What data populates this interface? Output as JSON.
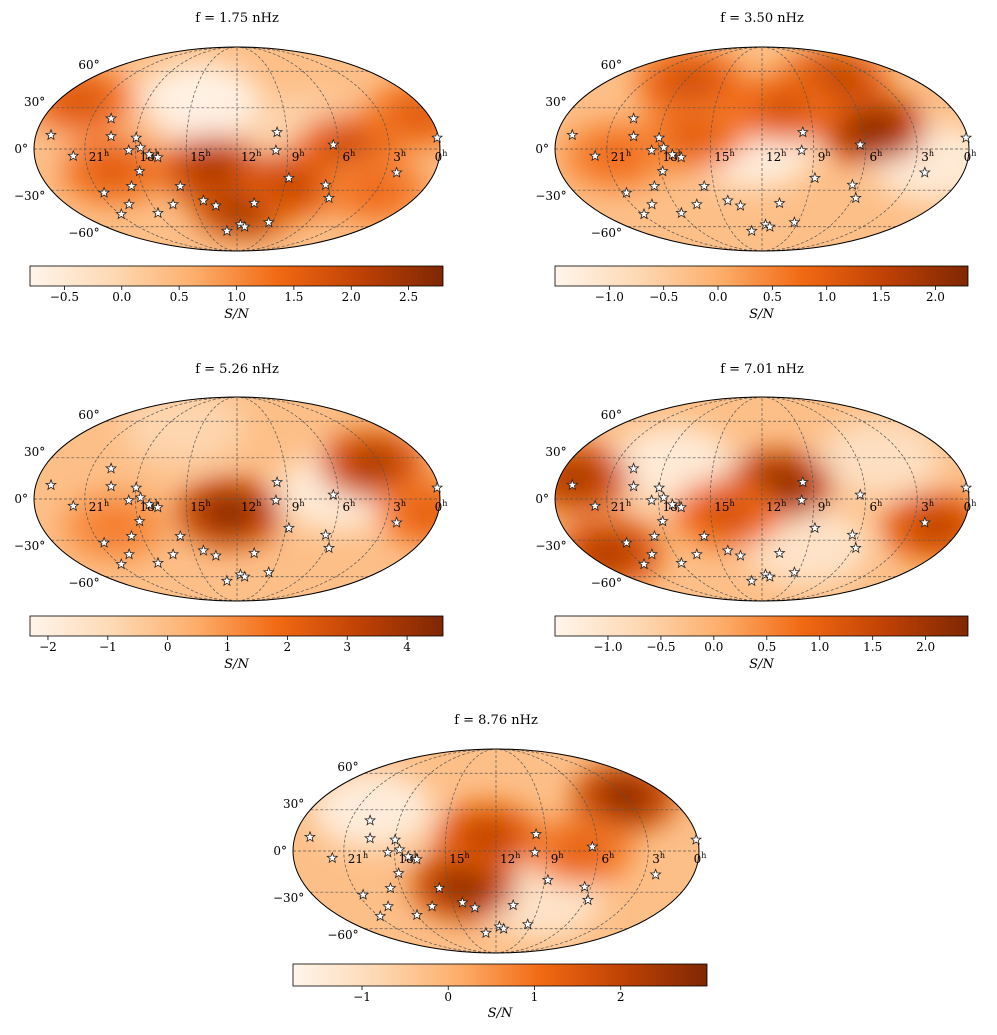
{
  "figure": {
    "colorbar_label": "S/N",
    "ra_labels": [
      "21h",
      "18h",
      "15h",
      "12h",
      "9h",
      "6h",
      "3h",
      "0h"
    ],
    "dec_labels": [
      "60°",
      "30°",
      "0°",
      "−30°",
      "−60°"
    ]
  },
  "chart_data": [
    {
      "type": "heatmap",
      "projection": "mollweide",
      "title": "f = 1.75 nHz",
      "colorbar_ticks": [
        "−0.5",
        "0.0",
        "0.5",
        "1.0",
        "1.5",
        "2.0",
        "2.5"
      ],
      "colorbar_range": [
        -0.8,
        2.8
      ],
      "hotspots": [
        {
          "ra": 11.5,
          "dec": -40,
          "value": 2.7
        },
        {
          "ra": 8.5,
          "dec": -25,
          "value": 2.0
        },
        {
          "ra": 13.5,
          "dec": -15,
          "value": 2.3
        },
        {
          "ra": 19.5,
          "dec": -15,
          "value": 1.6
        },
        {
          "ra": 22.5,
          "dec": 35,
          "value": 1.7
        },
        {
          "ra": 5.5,
          "dec": 0,
          "value": 1.9
        },
        {
          "ra": 0.5,
          "dec": 25,
          "value": 1.6
        },
        {
          "ra": 3.0,
          "dec": -30,
          "value": 1.4
        }
      ],
      "coldspots": [
        {
          "ra": 14.5,
          "dec": 35,
          "value": -0.7
        },
        {
          "ra": 8.0,
          "dec": 10,
          "value": 0.0
        },
        {
          "ra": 20.0,
          "dec": 10,
          "value": 0.3
        }
      ]
    },
    {
      "type": "heatmap",
      "projection": "mollweide",
      "title": "f = 3.50 nHz",
      "colorbar_ticks": [
        "−1.0",
        "−0.5",
        "0.0",
        "0.5",
        "1.0",
        "1.5",
        "2.0"
      ],
      "colorbar_range": [
        -1.5,
        2.3
      ],
      "hotspots": [
        {
          "ra": 5.5,
          "dec": 15,
          "value": 2.2
        },
        {
          "ra": 6.5,
          "dec": 50,
          "value": 1.6
        },
        {
          "ra": 17.5,
          "dec": 50,
          "value": 1.3
        },
        {
          "ra": 16.0,
          "dec": 10,
          "value": 1.0
        },
        {
          "ra": 20.5,
          "dec": -5,
          "value": 0.8
        },
        {
          "ra": 10.5,
          "dec": 30,
          "value": 1.2
        }
      ],
      "coldspots": [
        {
          "ra": 12.5,
          "dec": 0,
          "value": -1.3
        },
        {
          "ra": 2.0,
          "dec": -10,
          "value": -1.2
        }
      ]
    },
    {
      "type": "heatmap",
      "projection": "mollweide",
      "title": "f = 5.26 nHz",
      "colorbar_ticks": [
        "−2",
        "−1",
        "0",
        "1",
        "2",
        "3",
        "4"
      ],
      "colorbar_range": [
        -2.3,
        4.6
      ],
      "hotspots": [
        {
          "ra": 12.5,
          "dec": -10,
          "value": 4.4
        },
        {
          "ra": 3.5,
          "dec": 25,
          "value": 3.6
        },
        {
          "ra": 0.5,
          "dec": -10,
          "value": 2.2
        },
        {
          "ra": 19.5,
          "dec": -20,
          "value": 1.5
        }
      ],
      "coldspots": [
        {
          "ra": 6.0,
          "dec": 5,
          "value": -1.8
        },
        {
          "ra": 16.5,
          "dec": 55,
          "value": -0.8
        }
      ]
    },
    {
      "type": "heatmap",
      "projection": "mollweide",
      "title": "f = 7.01 nHz",
      "colorbar_ticks": [
        "−1.0",
        "−0.5",
        "0.0",
        "0.5",
        "1.0",
        "1.5",
        "2.0"
      ],
      "colorbar_range": [
        -1.5,
        2.4
      ],
      "hotspots": [
        {
          "ra": 11.0,
          "dec": 10,
          "value": 2.3
        },
        {
          "ra": 23.0,
          "dec": 15,
          "value": 1.9
        },
        {
          "ra": 22.5,
          "dec": -40,
          "value": 1.8
        },
        {
          "ra": 1.5,
          "dec": -20,
          "value": 1.6
        },
        {
          "ra": 14.0,
          "dec": -10,
          "value": 1.3
        }
      ],
      "coldspots": [
        {
          "ra": 17.5,
          "dec": 25,
          "value": -1.2
        },
        {
          "ra": 9.0,
          "dec": -35,
          "value": -1.0
        },
        {
          "ra": 4.5,
          "dec": 30,
          "value": -0.9
        }
      ]
    },
    {
      "type": "heatmap",
      "projection": "mollweide",
      "title": "f = 8.76 nHz",
      "colorbar_ticks": [
        "−1",
        "0",
        "1",
        "2"
      ],
      "colorbar_range": [
        -1.8,
        3.0
      ],
      "hotspots": [
        {
          "ra": 14.0,
          "dec": -25,
          "value": 2.8
        },
        {
          "ra": 3.0,
          "dec": 40,
          "value": 2.8
        },
        {
          "ra": 12.5,
          "dec": 10,
          "value": 2.0
        },
        {
          "ra": 7.0,
          "dec": 0,
          "value": 1.3
        }
      ],
      "coldspots": [
        {
          "ra": 20.0,
          "dec": 30,
          "value": -1.5
        },
        {
          "ra": 9.0,
          "dec": -35,
          "value": -1.2
        }
      ]
    }
  ],
  "pulsars": [
    {
      "ra": 23.1,
      "dec": 10
    },
    {
      "ra": 21.7,
      "dec": -5
    },
    {
      "ra": 19.8,
      "dec": 22
    },
    {
      "ra": 19.5,
      "dec": 9
    },
    {
      "ra": 18.4,
      "dec": -1
    },
    {
      "ra": 18.0,
      "dec": 8
    },
    {
      "ra": 17.7,
      "dec": 1
    },
    {
      "ra": 17.2,
      "dec": -4
    },
    {
      "ra": 16.7,
      "dec": -6
    },
    {
      "ra": 17.9,
      "dec": -16
    },
    {
      "ra": 18.7,
      "dec": -27
    },
    {
      "ra": 15.6,
      "dec": -27
    },
    {
      "ra": 20.7,
      "dec": -32
    },
    {
      "ra": 19.6,
      "dec": -41
    },
    {
      "ra": 20.9,
      "dec": -49
    },
    {
      "ra": 18.0,
      "dec": -48
    },
    {
      "ra": 16.5,
      "dec": -41
    },
    {
      "ra": 14.3,
      "dec": -38
    },
    {
      "ra": 13.5,
      "dec": -42
    },
    {
      "ra": 13.0,
      "dec": -64
    },
    {
      "ra": 11.7,
      "dec": -58
    },
    {
      "ra": 11.3,
      "dec": -60
    },
    {
      "ra": 10.8,
      "dec": -40
    },
    {
      "ra": 9.6,
      "dec": 12
    },
    {
      "ra": 9.7,
      "dec": -1
    },
    {
      "ra": 8.8,
      "dec": -21
    },
    {
      "ra": 9.3,
      "dec": -56
    },
    {
      "ra": 6.3,
      "dec": 3
    },
    {
      "ra": 6.4,
      "dec": -26
    },
    {
      "ra": 5.8,
      "dec": -36
    },
    {
      "ra": 2.3,
      "dec": -17
    },
    {
      "ra": 0.1,
      "dec": 8
    }
  ]
}
